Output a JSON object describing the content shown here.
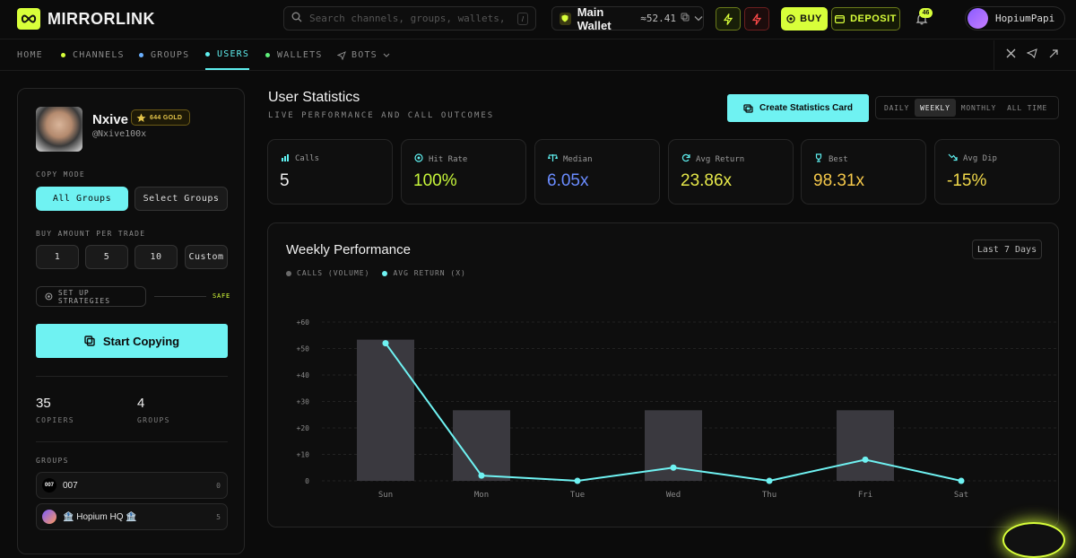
{
  "app": {
    "name": "MIRRORLINK"
  },
  "search": {
    "placeholder": "Search channels, groups, wallets, users",
    "shortcut": "/"
  },
  "wallet": {
    "name": "Main Wallet",
    "amount": "52.41"
  },
  "actions": {
    "buy": "BUY",
    "deposit": "DEPOSIT"
  },
  "notifications": {
    "count": "46"
  },
  "user": {
    "name": "HopiumPapi"
  },
  "nav": {
    "items": [
      {
        "label": "HOME",
        "dot": ""
      },
      {
        "label": "CHANNELS",
        "dot": "#d8ff3a"
      },
      {
        "label": "GROUPS",
        "dot": "#6ab0ff"
      },
      {
        "label": "USERS",
        "dot": "#5ff0f0"
      },
      {
        "label": "WALLETS",
        "dot": "#5ff07a"
      },
      {
        "label": "BOTS",
        "dot": ""
      }
    ]
  },
  "profile": {
    "name": "Nxive",
    "badge": "644 GOLD",
    "handle": "@Nxive100x",
    "copy_mode_label": "COPY MODE",
    "mode_all": "All Groups",
    "mode_select": "Select Groups",
    "buy_amount_label": "BUY AMOUNT PER TRADE",
    "amounts": [
      "1",
      "5",
      "10",
      "Custom"
    ],
    "strategies": "SET UP STRATEGIES",
    "safe": "SAFE",
    "start": "Start Copying",
    "copiers": "35",
    "copiers_label": "COPIERS",
    "groups_count": "4",
    "groups_label": "GROUPS",
    "groups_section": "GROUPS",
    "groups": [
      {
        "name": "007",
        "count": "0",
        "icon": "007"
      },
      {
        "name": "🏦 Hopium HQ 🏦",
        "count": "5",
        "icon": ""
      }
    ]
  },
  "stats": {
    "title": "User Statistics",
    "subtitle": "LIVE PERFORMANCE AND CALL OUTCOMES",
    "create": "Create Statistics Card",
    "periods": [
      "DAILY",
      "WEEKLY",
      "MONTHLY",
      "ALL TIME"
    ],
    "cards": [
      {
        "label": "Calls",
        "value": "5",
        "color": "#f0f0f0",
        "icon": "bar-chart-icon"
      },
      {
        "label": "Hit Rate",
        "value": "100%",
        "color": "#c6f53a",
        "icon": "target-icon"
      },
      {
        "label": "Median",
        "value": "6.05x",
        "color": "#6a8cff",
        "icon": "scale-icon"
      },
      {
        "label": "Avg Return",
        "value": "23.86x",
        "color": "#e6e84a",
        "icon": "refresh-icon"
      },
      {
        "label": "Best",
        "value": "98.31x",
        "color": "#f5c84a",
        "icon": "trophy-icon"
      },
      {
        "label": "Avg Dip",
        "value": "-15%",
        "color": "#f0d84a",
        "icon": "trend-down-icon"
      }
    ]
  },
  "chart": {
    "title": "Weekly Performance",
    "range": "Last 7 Days",
    "legend_calls": "CALLS (VOLUME)",
    "legend_return": "AVG RETURN (X)"
  },
  "chart_data": {
    "type": "bar",
    "title": "Weekly Performance",
    "categories": [
      "Sun",
      "Mon",
      "Tue",
      "Wed",
      "Thu",
      "Fri",
      "Sat"
    ],
    "y_ticks": [
      "+60",
      "+50",
      "+40",
      "+30",
      "+20",
      "+10",
      "0"
    ],
    "ylim": [
      0,
      60
    ],
    "series": [
      {
        "name": "CALLS (VOLUME)",
        "kind": "bar",
        "color": "#3a393f",
        "values": [
          2,
          1,
          0,
          1,
          0,
          1,
          0
        ]
      },
      {
        "name": "AVG RETURN (X)",
        "kind": "line",
        "color": "#6ff2f2",
        "values": [
          52,
          2,
          0,
          5,
          0,
          8,
          0
        ]
      }
    ],
    "bar_scale_max": 2
  }
}
